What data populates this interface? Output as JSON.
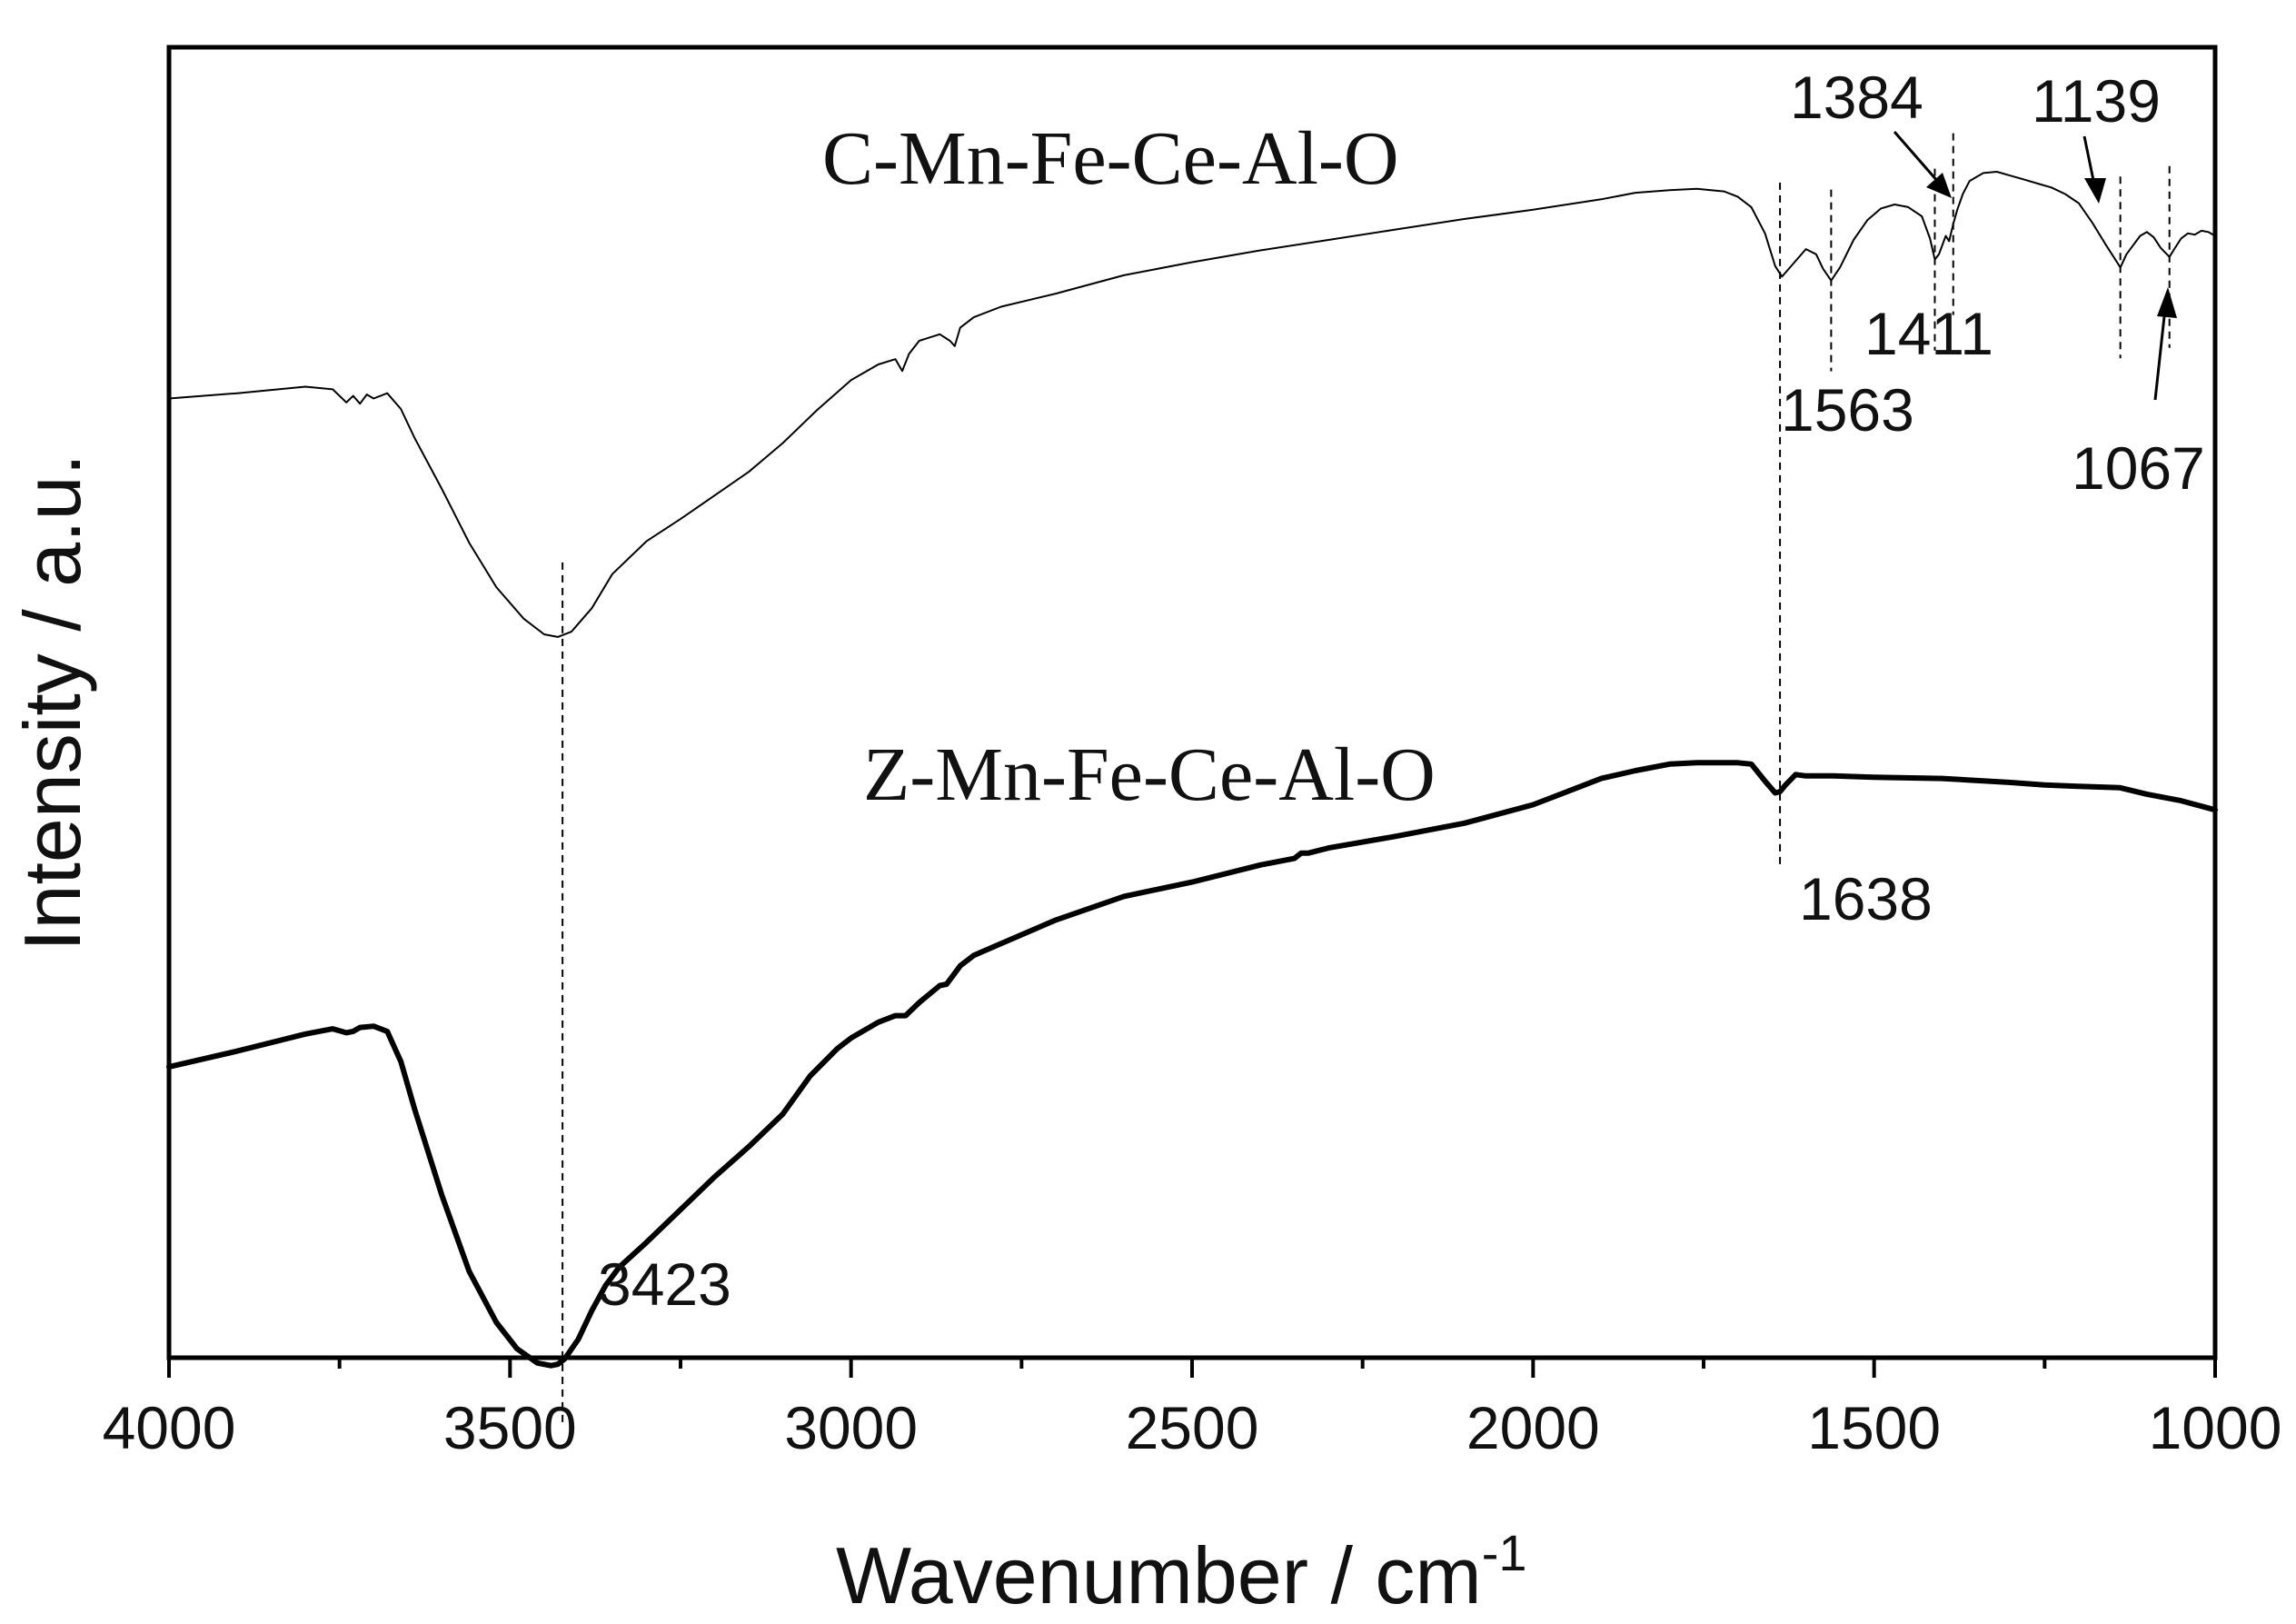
{
  "chart_data": {
    "type": "line",
    "title": "",
    "xlabel": "Wavenumber / cm",
    "xlabel_superscript": "-1",
    "ylabel": "Intensity / a.u.",
    "xlim": [
      4000,
      1000
    ],
    "x_reversed": true,
    "ylim": [
      0,
      100
    ],
    "y_ticks_shown": false,
    "x_ticks": [
      4000,
      3500,
      3000,
      2500,
      2000,
      1500,
      1000
    ],
    "x_tick_labels": [
      "4000",
      "3500",
      "3000",
      "2500",
      "2000",
      "1500",
      "1000"
    ],
    "x_minor_ticks": [
      3750,
      3250,
      2750,
      2250,
      1750,
      1250
    ],
    "grid": false,
    "legend": "none",
    "series": [
      {
        "name": "C-Mn-Fe-Ce-Al-O",
        "style": "thin",
        "x": [
          4000,
          3900,
          3800,
          3760,
          3740,
          3730,
          3720,
          3710,
          3700,
          3680,
          3660,
          3640,
          3600,
          3560,
          3520,
          3480,
          3450,
          3430,
          3410,
          3380,
          3350,
          3300,
          3250,
          3200,
          3150,
          3100,
          3050,
          3000,
          2960,
          2935,
          2925,
          2915,
          2900,
          2870,
          2855,
          2848,
          2840,
          2820,
          2780,
          2700,
          2600,
          2500,
          2400,
          2300,
          2200,
          2100,
          2000,
          1900,
          1850,
          1800,
          1760,
          1720,
          1700,
          1680,
          1660,
          1645,
          1635,
          1620,
          1600,
          1585,
          1575,
          1563,
          1550,
          1530,
          1510,
          1490,
          1470,
          1450,
          1430,
          1418,
          1411,
          1405,
          1395,
          1390,
          1384,
          1378,
          1370,
          1360,
          1340,
          1320,
          1300,
          1280,
          1260,
          1240,
          1220,
          1200,
          1180,
          1160,
          1150,
          1139,
          1130,
          1120,
          1110,
          1100,
          1090,
          1080,
          1067,
          1060,
          1050,
          1040,
          1030,
          1020,
          1010,
          1000
        ],
        "values": [
          73.2,
          73.6,
          74.1,
          73.9,
          72.9,
          73.4,
          72.8,
          73.5,
          73.2,
          73.6,
          72.4,
          70.2,
          66.3,
          62.2,
          58.8,
          56.4,
          55.2,
          55.0,
          55.4,
          57.2,
          59.8,
          62.3,
          64.0,
          65.8,
          67.6,
          69.8,
          72.3,
          74.6,
          75.8,
          76.2,
          75.3,
          76.6,
          77.6,
          78.1,
          77.6,
          77.2,
          78.6,
          79.4,
          80.2,
          81.2,
          82.6,
          83.6,
          84.5,
          85.3,
          86.1,
          86.9,
          87.6,
          88.4,
          88.9,
          89.1,
          89.2,
          89.0,
          88.6,
          87.8,
          85.8,
          83.3,
          82.5,
          83.4,
          84.6,
          84.2,
          83.1,
          82.2,
          83.2,
          85.3,
          86.8,
          87.7,
          88.0,
          87.8,
          87.1,
          85.4,
          83.8,
          84.2,
          85.6,
          85.2,
          86.5,
          87.6,
          88.8,
          89.8,
          90.4,
          90.5,
          90.2,
          89.9,
          89.6,
          89.3,
          88.8,
          88.1,
          86.6,
          84.9,
          84.1,
          83.2,
          84.2,
          84.9,
          85.6,
          85.9,
          85.5,
          84.7,
          84.0,
          84.6,
          85.4,
          85.8,
          85.7,
          86.0,
          85.9,
          85.6
        ]
      },
      {
        "name": "Z-Mn-Fe-Ce-Al-O",
        "style": "thick",
        "x": [
          4000,
          3900,
          3800,
          3760,
          3740,
          3730,
          3720,
          3700,
          3680,
          3660,
          3640,
          3600,
          3560,
          3520,
          3490,
          3460,
          3440,
          3430,
          3420,
          3400,
          3380,
          3360,
          3340,
          3300,
          3250,
          3200,
          3150,
          3100,
          3060,
          3020,
          3000,
          2960,
          2935,
          2920,
          2900,
          2870,
          2860,
          2850,
          2840,
          2820,
          2780,
          2700,
          2600,
          2500,
          2400,
          2350,
          2340,
          2330,
          2300,
          2200,
          2100,
          2000,
          1950,
          1900,
          1850,
          1800,
          1760,
          1720,
          1700,
          1680,
          1660,
          1645,
          1638,
          1630,
          1615,
          1600,
          1560,
          1500,
          1400,
          1300,
          1250,
          1200,
          1140,
          1100,
          1050,
          1000
        ],
        "values": [
          22.2,
          23.4,
          24.7,
          25.1,
          24.8,
          24.9,
          25.2,
          25.3,
          24.9,
          22.6,
          19.0,
          12.4,
          6.6,
          2.7,
          0.7,
          -0.4,
          -0.6,
          -0.5,
          -0.1,
          1.4,
          3.6,
          5.5,
          6.9,
          8.8,
          11.3,
          13.8,
          16.1,
          18.6,
          21.5,
          23.6,
          24.4,
          25.6,
          26.1,
          26.1,
          27.1,
          28.4,
          28.5,
          29.2,
          29.9,
          30.7,
          31.6,
          33.4,
          35.2,
          36.3,
          37.6,
          38.1,
          38.5,
          38.5,
          38.9,
          39.8,
          40.8,
          42.2,
          43.2,
          44.2,
          44.8,
          45.3,
          45.4,
          45.4,
          45.4,
          45.3,
          44.0,
          43.1,
          43.2,
          43.7,
          44.5,
          44.4,
          44.4,
          44.3,
          44.2,
          43.9,
          43.7,
          43.6,
          43.5,
          43.0,
          42.5,
          41.8
        ]
      }
    ],
    "annotations": [
      {
        "label": "3423",
        "x": 3423
      },
      {
        "label": "1638",
        "x": 1638
      },
      {
        "label": "1563",
        "x": 1563
      },
      {
        "label": "1411",
        "x": 1411
      },
      {
        "label": "1384",
        "x": 1384
      },
      {
        "label": "1139",
        "x": 1139
      },
      {
        "label": "1067",
        "x": 1067
      }
    ],
    "reference_lines_x": [
      3423,
      1638,
      1563,
      1411,
      1384,
      1139,
      1067
    ]
  },
  "colors": {
    "line": "#000000",
    "axis": "#000000",
    "reference": "#000000",
    "background": "#ffffff"
  }
}
